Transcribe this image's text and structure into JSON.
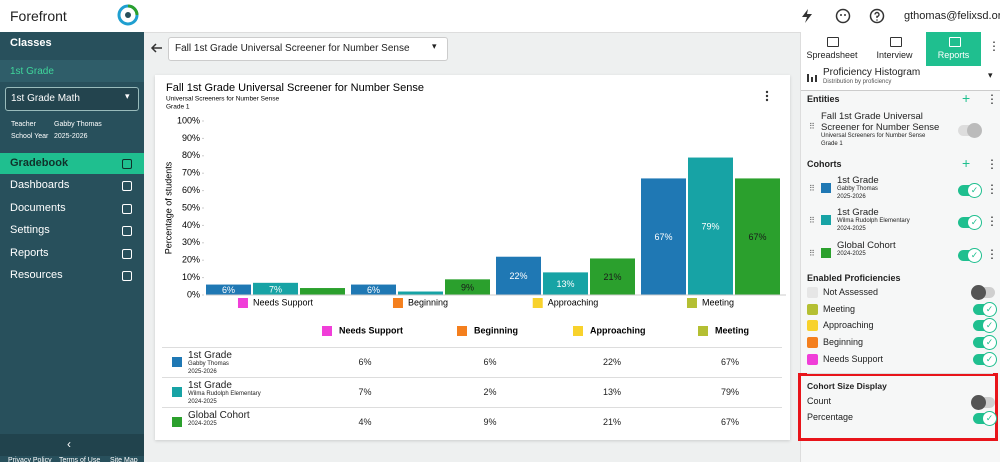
{
  "topbar": {
    "brand": "Forefront",
    "user": "gthomas@felixsd.org"
  },
  "sidebar": {
    "classes": "Classes",
    "grade": "1st Grade",
    "course": "1st Grade Math",
    "teacher_label": "Teacher",
    "teacher": "Gabby Thomas",
    "year_label": "School Year",
    "year": "2025-2026",
    "nav": [
      "Gradebook",
      "Dashboards",
      "Documents",
      "Settings",
      "Reports",
      "Resources"
    ],
    "footer": [
      "Privacy Policy",
      "Terms of Use",
      "Site Map"
    ]
  },
  "assessment_select": "Fall 1st Grade Universal Screener for Number Sense",
  "chart_data": {
    "type": "bar",
    "title": "Fall 1st Grade Universal Screener for Number Sense",
    "subtitle": [
      "Universal Screeners for Number Sense",
      "Grade 1"
    ],
    "y_label": "Percentage of students",
    "categories": [
      "Needs Support",
      "Beginning",
      "Approaching",
      "Meeting"
    ],
    "category_colors": [
      "#f03ed8",
      "#f47f1e",
      "#f8d22c",
      "#b4bf33"
    ],
    "series": [
      {
        "name": "1st Grade",
        "color": "#1f78b4",
        "values": [
          6,
          6,
          22,
          67
        ],
        "value_labels": [
          "6%",
          "6%",
          "22%",
          "67%"
        ]
      },
      {
        "name": "1st Grade",
        "color": "#17a3a5",
        "values": [
          7,
          2,
          13,
          79
        ],
        "value_labels": [
          "7%",
          null,
          "13%",
          "79%"
        ]
      },
      {
        "name": "Global Cohort",
        "color": "#2ba02d",
        "values": [
          4,
          9,
          21,
          67
        ],
        "value_labels": [
          null,
          "9%",
          "21%",
          "67%"
        ]
      }
    ],
    "ylim": [
      0,
      100
    ],
    "yticks": [
      {
        "value": 0,
        "label": "0%"
      },
      {
        "value": 10,
        "label": "10%"
      },
      {
        "value": 20,
        "label": "20%"
      },
      {
        "value": 30,
        "label": "30%"
      },
      {
        "value": 40,
        "label": "40%"
      },
      {
        "value": 50,
        "label": "50%"
      },
      {
        "value": 60,
        "label": "60%"
      },
      {
        "value": 70,
        "label": "70%"
      },
      {
        "value": 80,
        "label": "80%"
      },
      {
        "value": 90,
        "label": "90%"
      },
      {
        "value": 100,
        "label": "100%"
      }
    ],
    "grid": false
  },
  "table": {
    "rows": [
      {
        "name": "1st Grade",
        "details": [
          "Gabby Thomas",
          "2025-2026"
        ],
        "color": "#1f78b4",
        "cells": [
          "6%",
          "6%",
          "22%",
          "67%"
        ]
      },
      {
        "name": "1st Grade",
        "details": [
          "Wilma Rudolph Elementary",
          "2024-2025"
        ],
        "color": "#17a3a5",
        "cells": [
          "7%",
          "2%",
          "13%",
          "79%"
        ]
      },
      {
        "name": "Global Cohort",
        "details": [
          "2024-2025"
        ],
        "color": "#2ba02d",
        "cells": [
          "4%",
          "9%",
          "21%",
          "67%"
        ]
      }
    ]
  },
  "panel": {
    "tabs": [
      "Spreadsheet",
      "Interview",
      "Reports"
    ],
    "report_type": "Proficiency Histogram",
    "report_desc": "Distribution by proficiency",
    "entities_title": "Entities",
    "entity": {
      "name": "Fall 1st Grade Universal Screener for Number Sense",
      "details": [
        "Universal Screeners for Number Sense",
        "Grade 1"
      ]
    },
    "cohorts_title": "Cohorts",
    "cohorts": [
      {
        "name": "1st Grade",
        "details": [
          "Gabby Thomas",
          "2025-2026"
        ],
        "color": "#1f78b4",
        "enabled": true
      },
      {
        "name": "1st Grade",
        "details": [
          "Wilma Rudolph Elementary",
          "2024-2025"
        ],
        "color": "#17a3a5",
        "enabled": true
      },
      {
        "name": "Global Cohort",
        "details": [
          "2024-2025"
        ],
        "color": "#2ba02d",
        "enabled": true
      }
    ],
    "proficiencies_title": "Enabled Proficiencies",
    "proficiencies": [
      {
        "name": "Not Assessed",
        "color": "#e6e6e6",
        "enabled": false
      },
      {
        "name": "Meeting",
        "color": "#b4bf33",
        "enabled": true
      },
      {
        "name": "Approaching",
        "color": "#f8d22c",
        "enabled": true
      },
      {
        "name": "Beginning",
        "color": "#f47f1e",
        "enabled": true
      },
      {
        "name": "Needs Support",
        "color": "#f03ed8",
        "enabled": true
      }
    ],
    "size_title": "Cohort Size Display",
    "size_options": [
      {
        "name": "Count",
        "enabled": false
      },
      {
        "name": "Percentage",
        "enabled": true
      }
    ]
  }
}
